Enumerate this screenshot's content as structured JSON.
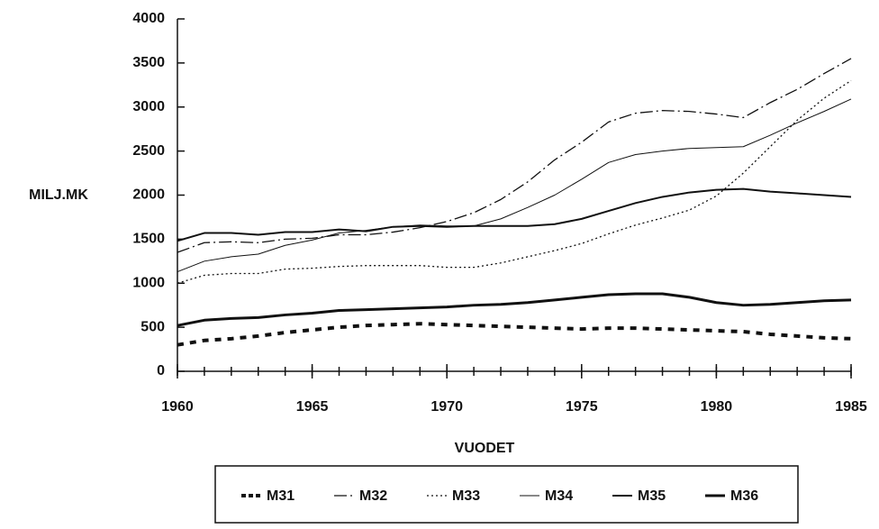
{
  "chart_data": {
    "type": "line",
    "y_label": "MILJ.MK",
    "x_label": "VUODET",
    "x": [
      1960,
      1961,
      1962,
      1963,
      1964,
      1965,
      1966,
      1967,
      1968,
      1969,
      1970,
      1971,
      1972,
      1973,
      1974,
      1975,
      1976,
      1977,
      1978,
      1979,
      1980,
      1981,
      1982,
      1983,
      1984,
      1985
    ],
    "xlim": [
      1960,
      1985
    ],
    "xticks": [
      1960,
      1965,
      1970,
      1975,
      1980,
      1985
    ],
    "ylim": [
      0,
      4000
    ],
    "yticks": [
      0,
      500,
      1000,
      1500,
      2000,
      2500,
      3000,
      3500,
      4000
    ],
    "series": [
      {
        "name": "M31",
        "color": "#111111",
        "values": [
          300,
          350,
          370,
          400,
          440,
          470,
          500,
          520,
          530,
          540,
          530,
          520,
          510,
          500,
          490,
          480,
          490,
          490,
          480,
          470,
          460,
          450,
          420,
          400,
          380,
          370
        ]
      },
      {
        "name": "M32",
        "color": "#111111",
        "values": [
          1350,
          1460,
          1470,
          1460,
          1500,
          1510,
          1550,
          1550,
          1580,
          1630,
          1700,
          1800,
          1950,
          2150,
          2400,
          2600,
          2830,
          2930,
          2960,
          2950,
          2920,
          2880,
          3050,
          3200,
          3380,
          3550
        ]
      },
      {
        "name": "M33",
        "color": "#111111",
        "values": [
          1000,
          1090,
          1110,
          1110,
          1160,
          1170,
          1190,
          1200,
          1200,
          1200,
          1180,
          1180,
          1230,
          1300,
          1370,
          1450,
          1560,
          1660,
          1740,
          1830,
          1990,
          2250,
          2550,
          2850,
          3100,
          3300
        ]
      },
      {
        "name": "M34",
        "color": "#111111",
        "values": [
          1130,
          1250,
          1300,
          1330,
          1430,
          1490,
          1570,
          1600,
          1640,
          1660,
          1650,
          1650,
          1730,
          1860,
          2000,
          2180,
          2370,
          2460,
          2500,
          2530,
          2540,
          2550,
          2680,
          2820,
          2950,
          3090
        ]
      },
      {
        "name": "M35",
        "color": "#111111",
        "values": [
          1480,
          1570,
          1570,
          1550,
          1580,
          1580,
          1610,
          1590,
          1640,
          1650,
          1640,
          1650,
          1650,
          1650,
          1670,
          1730,
          1820,
          1910,
          1980,
          2030,
          2060,
          2070,
          2040,
          2020,
          2000,
          1980
        ]
      },
      {
        "name": "M36",
        "color": "#111111",
        "values": [
          520,
          580,
          600,
          610,
          640,
          660,
          690,
          700,
          710,
          720,
          730,
          750,
          760,
          780,
          810,
          840,
          870,
          880,
          880,
          840,
          780,
          750,
          760,
          780,
          800,
          810
        ]
      }
    ]
  }
}
